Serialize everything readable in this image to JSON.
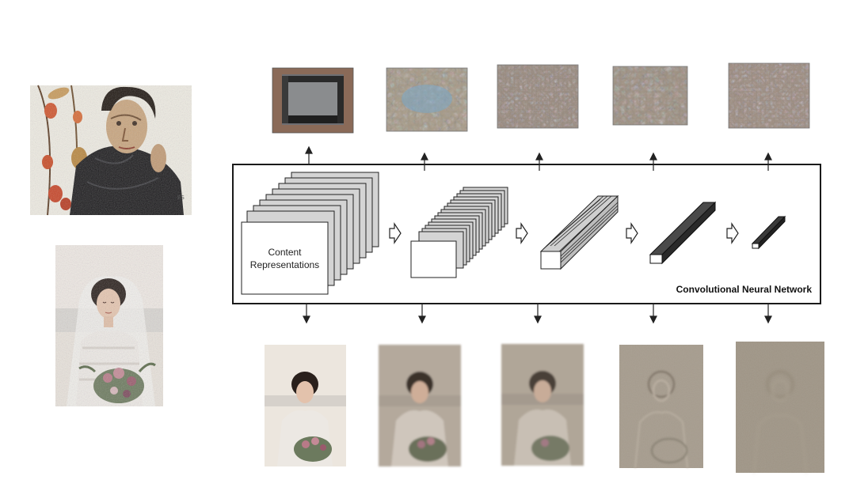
{
  "diagram": {
    "network_label": "Convolutional Neural Network",
    "stack_label": "Content\nRepresentations",
    "inputs": {
      "style_image": "painted self-portrait of a man with dark hair and lantern plant",
      "content_image": "photo of a bride in white lace dress with veil and bouquet"
    },
    "layers": [
      {
        "style_output": "style reconstruction texture 1",
        "content_output": "content reconstruction 1"
      },
      {
        "style_output": "style reconstruction texture 2",
        "content_output": "content reconstruction 2"
      },
      {
        "style_output": "style reconstruction texture 3",
        "content_output": "content reconstruction 3"
      },
      {
        "style_output": "style reconstruction texture 4",
        "content_output": "content reconstruction 4"
      },
      {
        "style_output": "style reconstruction texture 5",
        "content_output": "content reconstruction 5"
      }
    ]
  },
  "colors": {
    "box_border": "#1a1a1a",
    "stack_fill": "#d4d4d4",
    "dark_block": "#2a2a2a",
    "arrow": "#222222"
  },
  "icons": {
    "up_arrow": "up-arrow-icon",
    "down_arrow": "down-arrow-icon",
    "flow_arrow": "hollow-right-arrow-icon"
  }
}
